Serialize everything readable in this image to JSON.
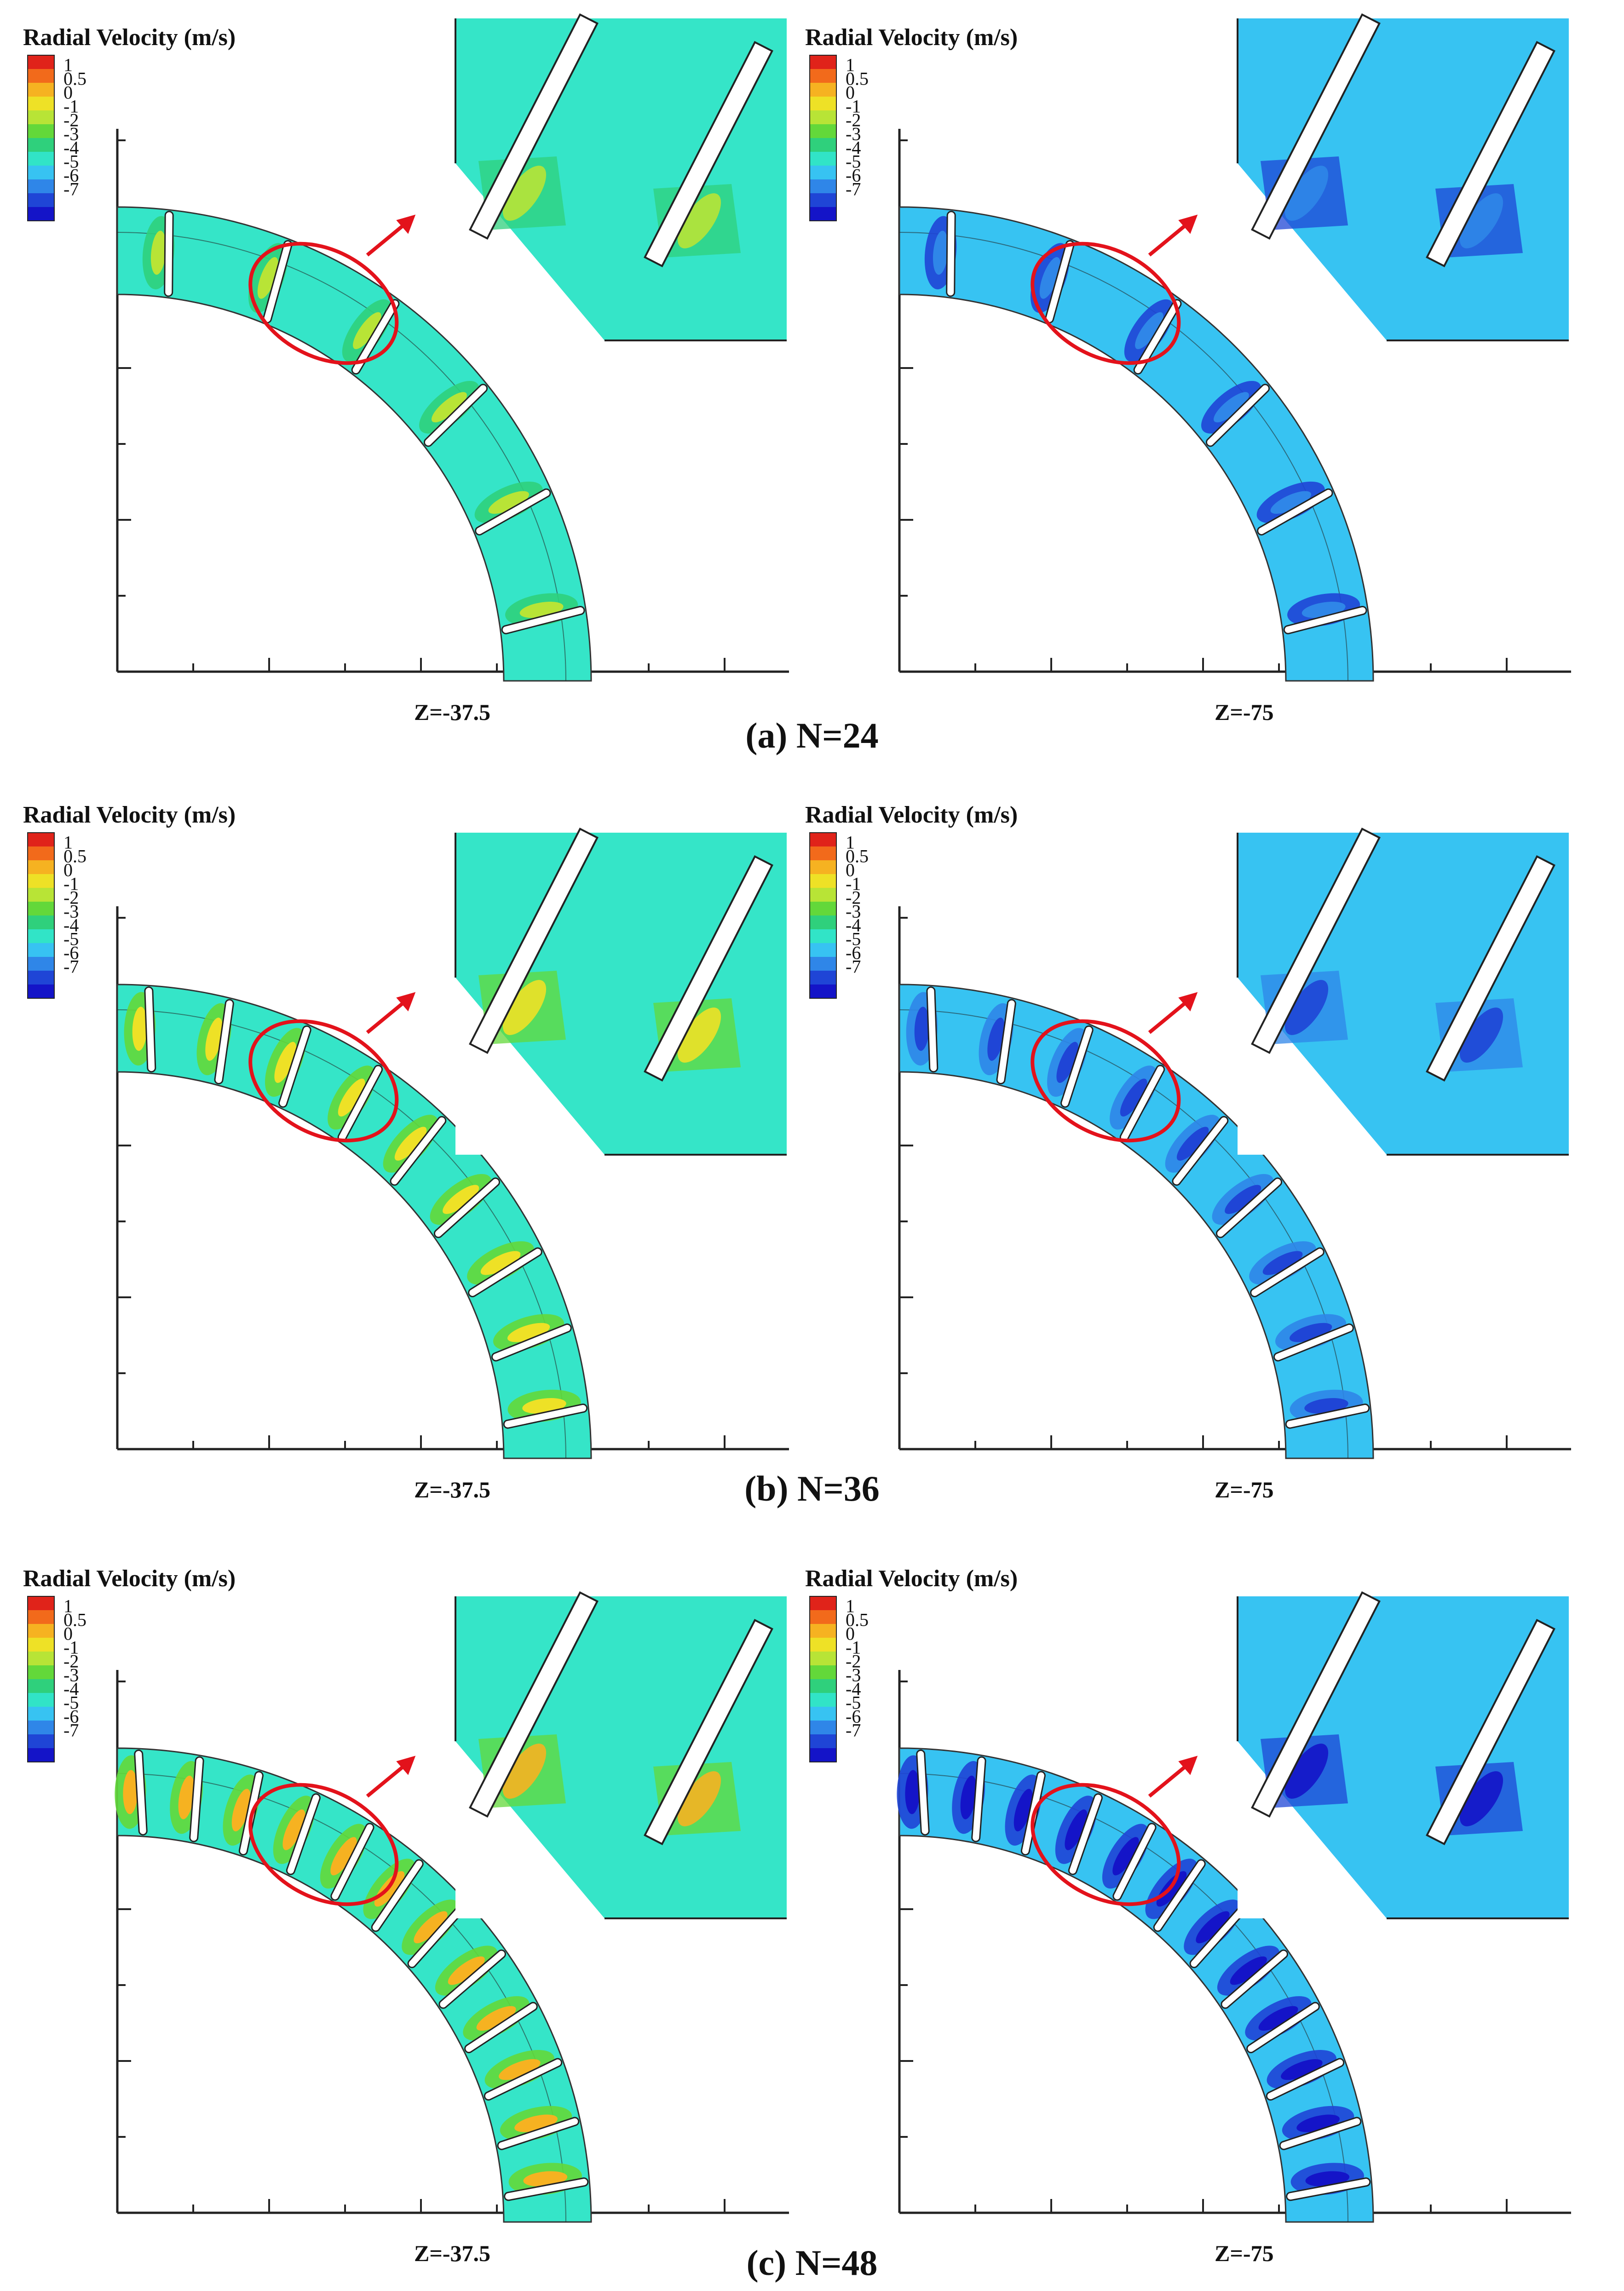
{
  "figure": {
    "colorbar_title": "Radial Velocity (m/s)",
    "colorbar_ticks": [
      "1",
      "0.5",
      "0",
      "-1",
      "-2",
      "-3",
      "-4",
      "-5",
      "-6",
      "-7"
    ],
    "colorbar_colors": [
      "#e0231a",
      "#f26a1b",
      "#f6b221",
      "#eee126",
      "#b8e436",
      "#63d83a",
      "#2fd07c",
      "#31e4c7",
      "#37c3f2",
      "#2f86e8",
      "#1f45d6",
      "#1414c8"
    ],
    "highlight_color": "#e3121b",
    "rows": [
      {
        "caption": "(a) N=24",
        "blade_count": 24,
        "panels": [
          {
            "z_label": "Z=-37.5",
            "field_color": "#35e5c8",
            "wake_color": "#2fd07c",
            "core_color": "#b8e436"
          },
          {
            "z_label": "Z=-75",
            "field_color": "#37c3f2",
            "wake_color": "#1f45d6",
            "core_color": "#2f86e8"
          }
        ]
      },
      {
        "caption": "(b) N=36",
        "blade_count": 36,
        "panels": [
          {
            "z_label": "Z=-37.5",
            "field_color": "#35e5c8",
            "wake_color": "#63d83a",
            "core_color": "#eee126"
          },
          {
            "z_label": "Z=-75",
            "field_color": "#37c3f2",
            "wake_color": "#2f86e8",
            "core_color": "#1f45d6"
          }
        ]
      },
      {
        "caption": "(c) N=48",
        "blade_count": 48,
        "panels": [
          {
            "z_label": "Z=-37.5",
            "field_color": "#35e5c8",
            "wake_color": "#63d83a",
            "core_color": "#f6b221"
          },
          {
            "z_label": "Z=-75",
            "field_color": "#37c3f2",
            "wake_color": "#1f45d6",
            "core_color": "#1414c8"
          }
        ]
      }
    ]
  }
}
